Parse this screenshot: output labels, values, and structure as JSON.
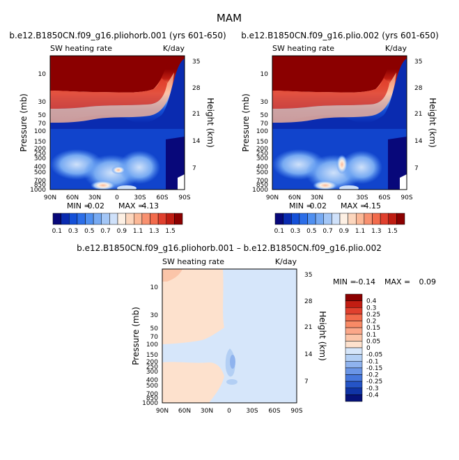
{
  "page": {
    "title": "MAM"
  },
  "panels": {
    "left": {
      "header": "b.e12.B1850CN.f09_g16.pliohorb.001 (yrs 601-650)",
      "variable": "SW heating rate",
      "units": "K/day",
      "min_label": "MIN =",
      "min_value": "0.02",
      "max_label": "MAX =",
      "max_value": "4.13"
    },
    "right": {
      "header": "b.e12.B1850CN.f09_g16.plio.002 (yrs 601-650)",
      "variable": "SW heating rate",
      "units": "K/day",
      "min_label": "MIN =",
      "min_value": "0.02",
      "max_label": "MAX =",
      "max_value": "4.15"
    },
    "diff": {
      "header": "b.e12.B1850CN.f09_g16.pliohorb.001 – b.e12.B1850CN.f09_g16.plio.002",
      "variable": "SW heating rate",
      "units": "K/day",
      "min_label": "MIN =",
      "min_value": "-0.14",
      "max_label": "MAX =",
      "max_value": "0.09"
    }
  },
  "axes": {
    "ylabel_left": "Pressure (mb)",
    "ylabel_right": "Height (km)"
  },
  "colorbars": {
    "main": {
      "levels": [
        "0.1",
        "0.3",
        "0.5",
        "0.7",
        "0.9",
        "1.1",
        "1.3",
        "1.5"
      ],
      "colors": [
        "#08087a",
        "#0a2bb0",
        "#1450d8",
        "#2c6ee8",
        "#4f8ff0",
        "#77aaf2",
        "#a3c6f6",
        "#cfe1fa",
        "#fdf0e4",
        "#fcd6bd",
        "#fbb897",
        "#f89170",
        "#f26b4c",
        "#e0402e",
        "#bf1d12",
        "#8b0000"
      ]
    },
    "diff": {
      "levels": [
        "0.4",
        "0.3",
        "0.25",
        "0.2",
        "0.15",
        "0.1",
        "0.05",
        "0",
        "-0.05",
        "-0.1",
        "-0.15",
        "-0.2",
        "-0.25",
        "-0.3",
        "-0.4"
      ],
      "colors": [
        "#8b0000",
        "#c21d12",
        "#e0402e",
        "#f26b4c",
        "#f88a66",
        "#fba789",
        "#fbc5a9",
        "#fde1cd",
        "#d6e6fa",
        "#b3cff4",
        "#8fb3ee",
        "#6a95e6",
        "#4677dc",
        "#2554c6",
        "#1034a6",
        "#06127a"
      ]
    }
  },
  "chart_data": [
    {
      "type": "heatmap",
      "title": "b.e12.B1850CN.f09_g16.pliohorb.001 (yrs 601-650)",
      "variable": "SW heating rate",
      "units": "K/day",
      "xlabel": "",
      "ylabel": "Pressure (mb)",
      "ylabel_right": "Height (km)",
      "x_ticks": [
        "90N",
        "60N",
        "30N",
        "0",
        "30S",
        "60S",
        "90S"
      ],
      "y_ticks": [
        "10",
        "30",
        "50",
        "70",
        "100",
        "150",
        "200",
        "250",
        "300",
        "400",
        "500",
        "700",
        "850",
        "1000"
      ],
      "y2_ticks": [
        "35",
        "28",
        "21",
        "14",
        "7"
      ],
      "contour_levels": [
        0.1,
        0.3,
        0.5,
        0.7,
        0.9,
        1.1,
        1.3,
        1.5
      ],
      "min": 0.02,
      "max": 4.13
    },
    {
      "type": "heatmap",
      "title": "b.e12.B1850CN.f09_g16.plio.002 (yrs 601-650)",
      "variable": "SW heating rate",
      "units": "K/day",
      "xlabel": "",
      "ylabel": "Pressure (mb)",
      "ylabel_right": "Height (km)",
      "x_ticks": [
        "90N",
        "60N",
        "30N",
        "0",
        "30S",
        "60S",
        "90S"
      ],
      "y_ticks": [
        "10",
        "30",
        "50",
        "70",
        "100",
        "150",
        "200",
        "250",
        "300",
        "400",
        "500",
        "700",
        "850",
        "1000"
      ],
      "y2_ticks": [
        "35",
        "28",
        "21",
        "14",
        "7"
      ],
      "contour_levels": [
        0.1,
        0.3,
        0.5,
        0.7,
        0.9,
        1.1,
        1.3,
        1.5
      ],
      "min": 0.02,
      "max": 4.15
    },
    {
      "type": "heatmap",
      "title": "b.e12.B1850CN.f09_g16.pliohorb.001 – b.e12.B1850CN.f09_g16.plio.002",
      "variable": "SW heating rate",
      "units": "K/day",
      "xlabel": "",
      "ylabel": "Pressure (mb)",
      "ylabel_right": "Height (km)",
      "x_ticks": [
        "90N",
        "60N",
        "30N",
        "0",
        "30S",
        "60S",
        "90S"
      ],
      "y_ticks": [
        "10",
        "30",
        "50",
        "70",
        "100",
        "150",
        "200",
        "250",
        "300",
        "400",
        "500",
        "700",
        "850",
        "1000"
      ],
      "y2_ticks": [
        "35",
        "28",
        "21",
        "14",
        "7"
      ],
      "contour_levels": [
        -0.4,
        -0.3,
        -0.25,
        -0.2,
        -0.15,
        -0.1,
        -0.05,
        0,
        0.05,
        0.1,
        0.15,
        0.2,
        0.25,
        0.3,
        0.4
      ],
      "min": -0.14,
      "max": 0.09
    }
  ]
}
